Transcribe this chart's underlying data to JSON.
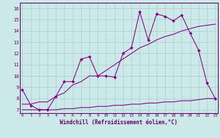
{
  "xlabel": "Windchill (Refroidissement éolien,°C)",
  "bg_color": "#cce9e9",
  "line_color": "#880088",
  "grid_color": "#aacccc",
  "x_ticks": [
    0,
    1,
    2,
    3,
    4,
    5,
    6,
    7,
    8,
    9,
    10,
    11,
    12,
    13,
    14,
    15,
    16,
    17,
    18,
    19,
    20,
    21,
    22,
    23
  ],
  "y_ticks": [
    7,
    8,
    9,
    10,
    11,
    12,
    13,
    14,
    15,
    16
  ],
  "ylim": [
    6.7,
    16.5
  ],
  "xlim": [
    -0.3,
    23.3
  ],
  "line1_x": [
    0,
    1,
    2,
    3,
    4,
    5,
    6,
    7,
    8,
    9,
    10,
    11,
    12,
    13,
    14,
    15,
    16,
    17,
    18,
    19,
    20,
    21,
    22,
    23
  ],
  "line1_y": [
    8.8,
    7.4,
    7.0,
    7.0,
    8.2,
    9.5,
    9.5,
    11.5,
    11.7,
    10.0,
    10.0,
    9.9,
    12.0,
    12.5,
    15.7,
    13.2,
    15.5,
    15.3,
    14.9,
    15.4,
    13.8,
    12.3,
    9.4,
    8.0
  ],
  "line2_x": [
    0,
    1,
    2,
    3,
    4,
    5,
    6,
    7,
    8,
    9,
    10,
    11,
    12,
    13,
    14,
    15,
    16,
    17,
    18,
    19,
    20,
    21,
    22,
    23
  ],
  "line2_y": [
    7.0,
    7.0,
    7.0,
    7.0,
    7.0,
    7.1,
    7.1,
    7.2,
    7.2,
    7.3,
    7.3,
    7.4,
    7.4,
    7.5,
    7.5,
    7.6,
    7.6,
    7.7,
    7.7,
    7.8,
    7.8,
    7.9,
    8.0,
    8.0
  ],
  "line3_x": [
    0,
    1,
    2,
    3,
    4,
    5,
    6,
    7,
    8,
    9,
    10,
    11,
    12,
    13,
    14,
    15,
    16,
    17,
    18,
    19,
    20,
    21,
    22,
    23
  ],
  "line3_y": [
    7.5,
    7.5,
    7.7,
    7.7,
    8.2,
    8.5,
    9.2,
    9.5,
    10.0,
    10.0,
    10.5,
    11.0,
    11.5,
    12.0,
    12.5,
    12.8,
    13.2,
    13.5,
    13.7,
    14.0,
    14.2,
    14.4,
    14.5,
    14.6
  ]
}
